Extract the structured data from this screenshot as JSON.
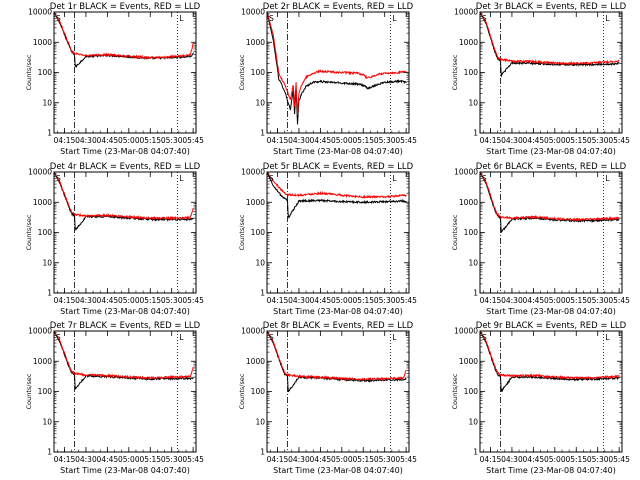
{
  "colors": {
    "events": "#000000",
    "lld": "#ff0000",
    "background": "#ffffff"
  },
  "chart_data": [
    {
      "type": "line",
      "title": "Det 1r BLACK = Events, RED = LLD",
      "xlabel": "Start Time (23-Mar-08 04:07:40)",
      "ylabel": "Counts/sec",
      "xlim": [
        "04:07:40",
        "05:47:00"
      ],
      "ylim": [
        1,
        10000
      ],
      "y_scale": "log",
      "x_ticks": [
        "04:15",
        "04:30",
        "04:45",
        "05:00",
        "05:15",
        "05:30",
        "05:45"
      ],
      "y_ticks": [
        "1",
        "10",
        "100",
        "1000",
        "10000"
      ],
      "markers": [
        "S",
        "L"
      ],
      "vlines": [
        {
          "time": "04:22:00",
          "style": "dash-dot"
        },
        {
          "time": "05:34:00",
          "style": "dotted"
        }
      ],
      "series": [
        {
          "name": "Events",
          "color": "#000000",
          "x": [
            "04:07:40",
            "04:12",
            "04:18",
            "04:20",
            "04:22",
            "04:22:30",
            "04:30",
            "04:45",
            "05:00",
            "05:15",
            "05:30",
            "05:40",
            "05:43",
            "05:45"
          ],
          "y": [
            10000,
            4000,
            800,
            480,
            400,
            150,
            340,
            370,
            330,
            295,
            310,
            330,
            340,
            400
          ]
        },
        {
          "name": "LLD",
          "color": "#ff0000",
          "x": [
            "04:07:40",
            "04:12",
            "04:18",
            "04:20",
            "04:22",
            "04:30",
            "04:45",
            "05:00",
            "05:15",
            "05:30",
            "05:40",
            "05:43",
            "05:45"
          ],
          "y": [
            10000,
            4500,
            900,
            520,
            430,
            360,
            390,
            345,
            310,
            330,
            360,
            380,
            900
          ]
        }
      ]
    },
    {
      "type": "line",
      "title": "Det 2r BLACK = Events, RED = LLD",
      "xlabel": "Start Time (23-Mar-08 04:07:40)",
      "ylabel": "Counts/sec",
      "xlim": [
        "04:07:40",
        "05:47:00"
      ],
      "ylim": [
        1,
        10000
      ],
      "y_scale": "log",
      "x_ticks": [
        "04:15",
        "04:30",
        "04:45",
        "05:00",
        "05:15",
        "05:30",
        "05:45"
      ],
      "y_ticks": [
        "1",
        "10",
        "100",
        "1000",
        "10000"
      ],
      "markers": [
        "S",
        "L"
      ],
      "vlines": [
        {
          "time": "04:22:00",
          "style": "dash-dot"
        },
        {
          "time": "05:34:00",
          "style": "dotted"
        }
      ],
      "series": [
        {
          "name": "Events",
          "color": "#000000",
          "x": [
            "04:07:40",
            "04:12",
            "04:16",
            "04:20",
            "04:22",
            "04:24",
            "04:26",
            "04:27",
            "04:28",
            "04:29",
            "04:30",
            "04:32",
            "04:35",
            "04:40",
            "04:45",
            "05:00",
            "05:10",
            "05:15",
            "05:18",
            "05:25",
            "05:30",
            "05:40",
            "05:45"
          ],
          "y": [
            10000,
            1200,
            60,
            25,
            12,
            6,
            25,
            4,
            30,
            2,
            12,
            20,
            35,
            48,
            50,
            45,
            42,
            38,
            30,
            40,
            48,
            52,
            48
          ]
        },
        {
          "name": "LLD",
          "color": "#ff0000",
          "x": [
            "04:07:40",
            "04:12",
            "04:16",
            "04:20",
            "04:22",
            "04:24",
            "04:26",
            "04:27",
            "04:28",
            "04:29",
            "04:30",
            "04:32",
            "04:35",
            "04:40",
            "04:45",
            "05:00",
            "05:10",
            "05:15",
            "05:18",
            "05:25",
            "05:30",
            "05:40",
            "05:45"
          ],
          "y": [
            10000,
            1800,
            90,
            40,
            25,
            12,
            40,
            8,
            50,
            4,
            20,
            40,
            70,
            95,
            110,
            100,
            95,
            85,
            65,
            85,
            95,
            100,
            110
          ]
        }
      ]
    },
    {
      "type": "line",
      "title": "Det 3r BLACK = Events, RED = LLD",
      "xlabel": "Start Time (23-Mar-08 04:07:40)",
      "ylabel": "Counts/sec",
      "xlim": [
        "04:07:40",
        "05:47:00"
      ],
      "ylim": [
        1,
        10000
      ],
      "y_scale": "log",
      "x_ticks": [
        "04:15",
        "04:30",
        "04:45",
        "05:00",
        "05:15",
        "05:30",
        "05:45"
      ],
      "y_ticks": [
        "1",
        "10",
        "100",
        "1000",
        "10000"
      ],
      "markers": [
        "S",
        "L"
      ],
      "vlines": [
        {
          "time": "04:22:00",
          "style": "dash-dot"
        },
        {
          "time": "05:34:00",
          "style": "dotted"
        }
      ],
      "series": [
        {
          "name": "Events",
          "color": "#000000",
          "x": [
            "04:07:40",
            "04:12",
            "04:18",
            "04:20",
            "04:22",
            "04:22:30",
            "04:30",
            "04:45",
            "05:00",
            "05:15",
            "05:30",
            "05:40",
            "05:45"
          ],
          "y": [
            10000,
            4000,
            500,
            300,
            240,
            80,
            210,
            200,
            185,
            180,
            185,
            190,
            200
          ]
        },
        {
          "name": "LLD",
          "color": "#ff0000",
          "x": [
            "04:07:40",
            "04:12",
            "04:18",
            "04:20",
            "04:22",
            "04:30",
            "04:45",
            "05:00",
            "05:15",
            "05:30",
            "05:40",
            "05:45"
          ],
          "y": [
            10000,
            4500,
            560,
            330,
            270,
            240,
            230,
            205,
            200,
            210,
            230,
            240
          ]
        }
      ]
    },
    {
      "type": "line",
      "title": "Det 4r BLACK = Events, RED = LLD",
      "xlabel": "Start Time (23-Mar-08 04:07:40)",
      "ylabel": "Counts/sec",
      "xlim": [
        "04:07:40",
        "05:47:00"
      ],
      "ylim": [
        1,
        10000
      ],
      "y_scale": "log",
      "x_ticks": [
        "04:15",
        "04:30",
        "04:45",
        "05:00",
        "05:15",
        "05:30",
        "05:45"
      ],
      "y_ticks": [
        "1",
        "10",
        "100",
        "1000",
        "10000"
      ],
      "markers": [
        "S",
        "L"
      ],
      "vlines": [
        {
          "time": "04:22:00",
          "style": "dash-dot"
        },
        {
          "time": "05:34:00",
          "style": "dotted"
        }
      ],
      "series": [
        {
          "name": "Events",
          "color": "#000000",
          "x": [
            "04:07:40",
            "04:12",
            "04:18",
            "04:20",
            "04:22",
            "04:22:30",
            "04:30",
            "04:45",
            "05:00",
            "05:15",
            "05:30",
            "05:43",
            "05:45"
          ],
          "y": [
            10000,
            4000,
            700,
            420,
            360,
            120,
            330,
            340,
            300,
            270,
            270,
            270,
            280
          ]
        },
        {
          "name": "LLD",
          "color": "#ff0000",
          "x": [
            "04:07:40",
            "04:12",
            "04:18",
            "04:20",
            "04:22",
            "04:30",
            "04:45",
            "05:00",
            "05:15",
            "05:30",
            "05:43",
            "05:45"
          ],
          "y": [
            10000,
            4500,
            800,
            460,
            400,
            350,
            370,
            330,
            300,
            300,
            310,
            600
          ]
        }
      ]
    },
    {
      "type": "line",
      "title": "Det 5r BLACK = Events, RED = LLD",
      "xlabel": "Start Time (23-Mar-08 04:07:40)",
      "ylabel": "Counts/sec",
      "xlim": [
        "04:07:40",
        "05:47:00"
      ],
      "ylim": [
        1,
        10000
      ],
      "y_scale": "log",
      "x_ticks": [
        "04:15",
        "04:30",
        "04:45",
        "05:00",
        "05:15",
        "05:30",
        "05:45"
      ],
      "y_ticks": [
        "1",
        "10",
        "100",
        "1000",
        "10000"
      ],
      "markers": [
        "S",
        "L"
      ],
      "vlines": [
        {
          "time": "04:22:00",
          "style": "dash-dot"
        },
        {
          "time": "05:34:00",
          "style": "dotted"
        }
      ],
      "series": [
        {
          "name": "Events",
          "color": "#000000",
          "x": [
            "04:07:40",
            "04:12",
            "04:18",
            "04:20",
            "04:22",
            "04:22:30",
            "04:30",
            "04:45",
            "05:00",
            "05:15",
            "05:30",
            "05:45"
          ],
          "y": [
            10000,
            3500,
            1600,
            1300,
            1200,
            300,
            1100,
            1150,
            1050,
            1000,
            1050,
            1100
          ]
        },
        {
          "name": "LLD",
          "color": "#ff0000",
          "x": [
            "04:07:40",
            "04:12",
            "04:18",
            "04:20",
            "04:22",
            "04:30",
            "04:40",
            "04:45",
            "05:00",
            "05:15",
            "05:30",
            "05:45"
          ],
          "y": [
            10000,
            5000,
            2500,
            2000,
            1800,
            1700,
            1900,
            2000,
            1700,
            1500,
            1500,
            1700
          ]
        }
      ]
    },
    {
      "type": "line",
      "title": "Det 6r BLACK = Events, RED = LLD",
      "xlabel": "Start Time (23-Mar-08 04:07:40)",
      "ylabel": "Counts/sec",
      "xlim": [
        "04:07:40",
        "05:47:00"
      ],
      "ylim": [
        1,
        10000
      ],
      "y_scale": "log",
      "x_ticks": [
        "04:15",
        "04:30",
        "04:45",
        "05:00",
        "05:15",
        "05:30",
        "05:45"
      ],
      "y_ticks": [
        "1",
        "10",
        "100",
        "1000",
        "10000"
      ],
      "markers": [
        "S",
        "L"
      ],
      "vlines": [
        {
          "time": "04:22:00",
          "style": "dash-dot"
        },
        {
          "time": "05:34:00",
          "style": "dotted"
        }
      ],
      "series": [
        {
          "name": "Events",
          "color": "#000000",
          "x": [
            "04:07:40",
            "04:12",
            "04:18",
            "04:20",
            "04:22",
            "04:22:30",
            "04:30",
            "04:45",
            "05:00",
            "05:15",
            "05:30",
            "05:45"
          ],
          "y": [
            10000,
            4000,
            550,
            360,
            300,
            100,
            280,
            300,
            260,
            240,
            250,
            270
          ]
        },
        {
          "name": "LLD",
          "color": "#ff0000",
          "x": [
            "04:07:40",
            "04:12",
            "04:18",
            "04:20",
            "04:22",
            "04:30",
            "04:45",
            "05:00",
            "05:15",
            "05:30",
            "05:45"
          ],
          "y": [
            10000,
            4500,
            620,
            400,
            330,
            300,
            330,
            290,
            270,
            280,
            300
          ]
        }
      ]
    },
    {
      "type": "line",
      "title": "Det 7r BLACK = Events, RED = LLD",
      "xlabel": "Start Time (23-Mar-08 04:07:40)",
      "ylabel": "Counts/sec",
      "xlim": [
        "04:07:40",
        "05:47:00"
      ],
      "ylim": [
        1,
        10000
      ],
      "y_scale": "log",
      "x_ticks": [
        "04:15",
        "04:30",
        "04:45",
        "05:00",
        "05:15",
        "05:30",
        "05:45"
      ],
      "y_ticks": [
        "1",
        "10",
        "100",
        "1000",
        "10000"
      ],
      "markers": [
        "S",
        "L"
      ],
      "vlines": [
        {
          "time": "04:22:00",
          "style": "dash-dot"
        },
        {
          "time": "05:34:00",
          "style": "dotted"
        }
      ],
      "series": [
        {
          "name": "Events",
          "color": "#000000",
          "x": [
            "04:07:40",
            "04:12",
            "04:18",
            "04:20",
            "04:22",
            "04:22:30",
            "04:30",
            "04:45",
            "05:00",
            "05:15",
            "05:30",
            "05:43",
            "05:45"
          ],
          "y": [
            10000,
            4000,
            700,
            420,
            360,
            120,
            330,
            310,
            280,
            260,
            270,
            270,
            280
          ]
        },
        {
          "name": "LLD",
          "color": "#ff0000",
          "x": [
            "04:07:40",
            "04:12",
            "04:18",
            "04:20",
            "04:22",
            "04:30",
            "04:45",
            "05:00",
            "05:15",
            "05:30",
            "05:43",
            "05:45"
          ],
          "y": [
            10000,
            4500,
            800,
            460,
            400,
            350,
            340,
            300,
            280,
            300,
            310,
            600
          ]
        }
      ]
    },
    {
      "type": "line",
      "title": "Det 8r BLACK = Events, RED = LLD",
      "xlabel": "Start Time (23-Mar-08 04:07:40)",
      "ylabel": "Counts/sec",
      "xlim": [
        "04:07:40",
        "05:47:00"
      ],
      "ylim": [
        1,
        10000
      ],
      "y_scale": "log",
      "x_ticks": [
        "04:15",
        "04:30",
        "04:45",
        "05:00",
        "05:15",
        "05:30",
        "05:45"
      ],
      "y_ticks": [
        "1",
        "10",
        "100",
        "1000",
        "10000"
      ],
      "markers": [
        "S",
        "L"
      ],
      "vlines": [
        {
          "time": "04:22:00",
          "style": "dash-dot"
        },
        {
          "time": "05:34:00",
          "style": "dotted"
        }
      ],
      "series": [
        {
          "name": "Events",
          "color": "#000000",
          "x": [
            "04:07:40",
            "04:12",
            "04:18",
            "04:20",
            "04:22",
            "04:22:30",
            "04:30",
            "04:45",
            "05:00",
            "05:15",
            "05:30",
            "05:43",
            "05:45"
          ],
          "y": [
            10000,
            4000,
            650,
            380,
            320,
            100,
            300,
            280,
            250,
            230,
            240,
            250,
            260
          ]
        },
        {
          "name": "LLD",
          "color": "#ff0000",
          "x": [
            "04:07:40",
            "04:12",
            "04:18",
            "04:20",
            "04:22",
            "04:30",
            "04:45",
            "05:00",
            "05:15",
            "05:30",
            "05:43",
            "05:45"
          ],
          "y": [
            10000,
            4500,
            720,
            420,
            360,
            320,
            300,
            270,
            250,
            270,
            280,
            500
          ]
        }
      ]
    },
    {
      "type": "line",
      "title": "Det 9r BLACK = Events, RED = LLD",
      "xlabel": "Start Time (23-Mar-08 04:07:40)",
      "ylabel": "Counts/sec",
      "xlim": [
        "04:07:40",
        "05:47:00"
      ],
      "ylim": [
        1,
        10000
      ],
      "y_scale": "log",
      "x_ticks": [
        "04:15",
        "04:30",
        "04:45",
        "05:00",
        "05:15",
        "05:30",
        "05:45"
      ],
      "y_ticks": [
        "1",
        "10",
        "100",
        "1000",
        "10000"
      ],
      "markers": [
        "S",
        "L"
      ],
      "vlines": [
        {
          "time": "04:22:00",
          "style": "dash-dot"
        },
        {
          "time": "05:34:00",
          "style": "dotted"
        }
      ],
      "series": [
        {
          "name": "Events",
          "color": "#000000",
          "x": [
            "04:07:40",
            "04:12",
            "04:18",
            "04:20",
            "04:22",
            "04:22:30",
            "04:30",
            "04:45",
            "05:00",
            "05:15",
            "05:30",
            "05:45"
          ],
          "y": [
            10000,
            4000,
            600,
            370,
            310,
            100,
            300,
            300,
            270,
            250,
            260,
            280
          ]
        },
        {
          "name": "LLD",
          "color": "#ff0000",
          "x": [
            "04:07:40",
            "04:12",
            "04:18",
            "04:20",
            "04:22",
            "04:30",
            "04:45",
            "05:00",
            "05:15",
            "05:30",
            "05:45"
          ],
          "y": [
            10000,
            4500,
            680,
            410,
            350,
            330,
            340,
            300,
            280,
            290,
            320
          ]
        }
      ]
    }
  ]
}
